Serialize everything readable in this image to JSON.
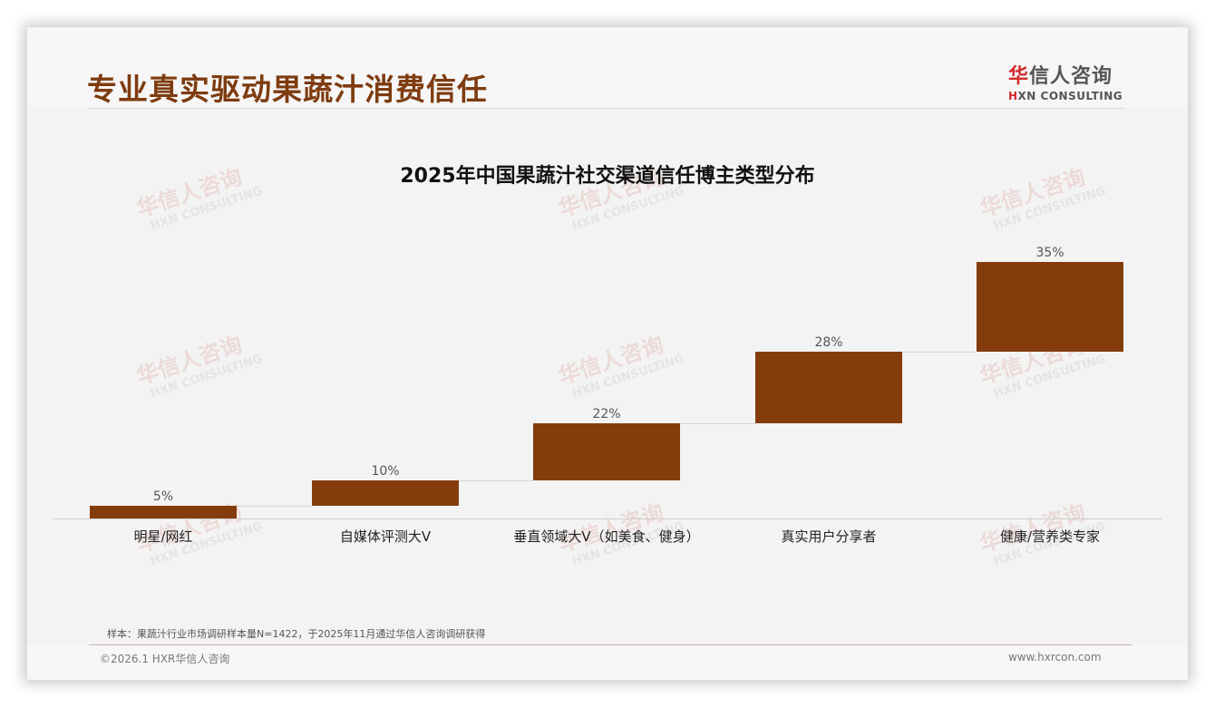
{
  "header": {
    "title": "专业真实驱动果蔬汁消费信任",
    "logo": {
      "cn_mark": "华",
      "cn_rest": "信人咨询",
      "en_mark": "H",
      "en_rest": "XN CONSULTING"
    }
  },
  "watermark": {
    "cn": "华信人咨询",
    "en": "HXN CONSULTING"
  },
  "chart_data": {
    "type": "waterfall",
    "title": "2025年中国果蔬汁社交渠道信任博主类型分布",
    "categories": [
      "明星/网红",
      "自媒体评测大V",
      "垂直领域大V（如美食、健身）",
      "真实用户分享者",
      "健康/营养类专家"
    ],
    "values": [
      5,
      10,
      22,
      28,
      35
    ],
    "value_labels": [
      "5%",
      "10%",
      "22%",
      "28%",
      "35%"
    ],
    "cumulative_end": [
      5,
      15,
      37,
      65,
      100
    ],
    "unit": "%",
    "xlabel": "",
    "ylabel": "",
    "ylim": [
      0,
      100
    ],
    "grid": false,
    "legend": null,
    "bar_color": "#843c0c"
  },
  "footer": {
    "sample_note": "样本：果蔬汁行业市场调研样本量N=1422，于2025年11月通过华信人咨询调研获得",
    "copyright": "©2026.1 HXR华信人咨询",
    "website": "www.hxrcon.com"
  },
  "colors": {
    "title": "#7e3b0f",
    "bar": "#843c0c",
    "logo_red": "#d42a2a",
    "background": "#f3f3f3"
  }
}
